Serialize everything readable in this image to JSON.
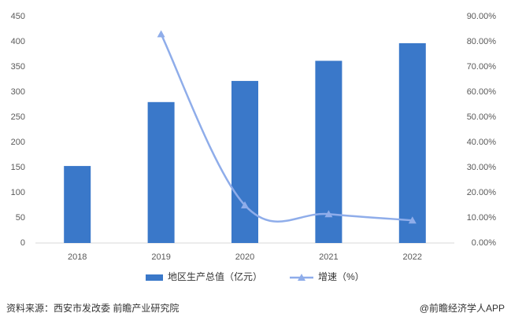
{
  "chart_data": {
    "type": "bar",
    "categories": [
      "2018",
      "2019",
      "2020",
      "2021",
      "2022"
    ],
    "series": [
      {
        "name": "地区生产总值（亿元）",
        "color": "#3a78c9",
        "type": "bar",
        "values": [
          153,
          280,
          322,
          362,
          397
        ]
      },
      {
        "name": "增速（%）",
        "color": "#8fadea",
        "type": "line",
        "axis": "y2",
        "values": [
          null,
          83,
          15,
          11.5,
          9
        ]
      }
    ],
    "ylim": [
      0,
      450
    ],
    "yticks": [
      0,
      50,
      100,
      150,
      200,
      250,
      300,
      350,
      400,
      450
    ],
    "y2lim": [
      0,
      90
    ],
    "y2ticks": [
      {
        "value": 0,
        "label": "0.00%"
      },
      {
        "value": 10,
        "label": "10.00%"
      },
      {
        "value": 20,
        "label": "20.00%"
      },
      {
        "value": 30,
        "label": "30.00%"
      },
      {
        "value": 40,
        "label": "40.00%"
      },
      {
        "value": 50,
        "label": "50.00%"
      },
      {
        "value": 60,
        "label": "60.00%"
      },
      {
        "value": 70,
        "label": "70.00%"
      },
      {
        "value": 80,
        "label": "80.00%"
      },
      {
        "value": 90,
        "label": "90.00%"
      }
    ],
    "grid": false,
    "legend": "bottom",
    "source": "资料来源：西安市发改委 前瞻产业研究院",
    "credit": "@前瞻经济学人APP"
  }
}
